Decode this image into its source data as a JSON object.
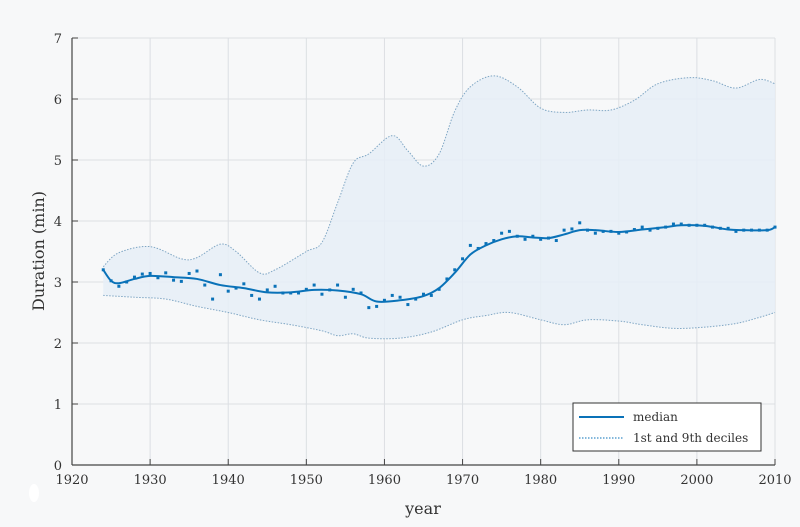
{
  "chart_data": {
    "type": "line",
    "xlabel": "year",
    "ylabel": "Duration (min)",
    "xlim": [
      1920,
      2010
    ],
    "ylim": [
      0,
      7
    ],
    "xticks": [
      1920,
      1930,
      1940,
      1950,
      1960,
      1970,
      1980,
      1990,
      2000,
      2010
    ],
    "yticks": [
      0,
      1,
      2,
      3,
      4,
      5,
      6,
      7
    ],
    "grid": true,
    "legend_position": "bottom-right",
    "colors": {
      "median": "#0a72b8",
      "points": "#0a72b8",
      "band_fill": "#e6eef7",
      "band_line": "#7fa6c4"
    },
    "points": {
      "x": [
        1924,
        1925,
        1926,
        1927,
        1928,
        1929,
        1930,
        1931,
        1932,
        1933,
        1934,
        1935,
        1936,
        1937,
        1938,
        1939,
        1940,
        1941,
        1942,
        1943,
        1944,
        1945,
        1946,
        1947,
        1948,
        1949,
        1950,
        1951,
        1952,
        1953,
        1954,
        1955,
        1956,
        1957,
        1958,
        1959,
        1960,
        1961,
        1962,
        1963,
        1964,
        1965,
        1966,
        1967,
        1968,
        1969,
        1970,
        1971,
        1972,
        1973,
        1974,
        1975,
        1976,
        1977,
        1978,
        1979,
        1980,
        1981,
        1982,
        1983,
        1984,
        1985,
        1986,
        1987,
        1988,
        1989,
        1990,
        1991,
        1992,
        1993,
        1994,
        1995,
        1996,
        1997,
        1998,
        1999,
        2000,
        2001,
        2002,
        2003,
        2004,
        2005,
        2006,
        2007,
        2008,
        2009,
        2010
      ],
      "y": [
        3.2,
        3.02,
        2.93,
        3.0,
        3.08,
        3.13,
        3.14,
        3.07,
        3.15,
        3.03,
        3.01,
        3.14,
        3.18,
        2.95,
        2.72,
        3.12,
        2.85,
        2.9,
        2.97,
        2.78,
        2.72,
        2.87,
        2.93,
        2.82,
        2.82,
        2.82,
        2.88,
        2.95,
        2.8,
        2.87,
        2.95,
        2.75,
        2.88,
        2.82,
        2.58,
        2.6,
        2.7,
        2.78,
        2.75,
        2.63,
        2.72,
        2.8,
        2.78,
        2.88,
        3.05,
        3.2,
        3.38,
        3.6,
        3.55,
        3.63,
        3.68,
        3.8,
        3.83,
        3.75,
        3.7,
        3.75,
        3.7,
        3.72,
        3.68,
        3.85,
        3.87,
        3.97,
        3.85,
        3.8,
        3.83,
        3.83,
        3.8,
        3.82,
        3.86,
        3.9,
        3.85,
        3.88,
        3.9,
        3.95,
        3.95,
        3.93,
        3.93,
        3.93,
        3.9,
        3.88,
        3.88,
        3.83,
        3.85,
        3.85,
        3.85,
        3.85,
        3.9
      ]
    },
    "series": [
      {
        "name": "median",
        "x": [
          1924,
          1925,
          1926,
          1928,
          1930,
          1933,
          1936,
          1939,
          1942,
          1945,
          1948,
          1951,
          1954,
          1957,
          1959,
          1962,
          1965,
          1967,
          1969,
          1971,
          1973,
          1975,
          1977,
          1979,
          1981,
          1983,
          1985,
          1987,
          1990,
          1993,
          1996,
          1998,
          2001,
          2004,
          2006,
          2009,
          2010
        ],
        "y": [
          3.2,
          3.02,
          2.98,
          3.05,
          3.1,
          3.08,
          3.05,
          2.95,
          2.9,
          2.83,
          2.83,
          2.87,
          2.86,
          2.8,
          2.68,
          2.7,
          2.77,
          2.9,
          3.15,
          3.45,
          3.6,
          3.7,
          3.75,
          3.73,
          3.72,
          3.78,
          3.85,
          3.85,
          3.82,
          3.86,
          3.9,
          3.93,
          3.92,
          3.86,
          3.85,
          3.85,
          3.9
        ]
      },
      {
        "name": "1st and 9th deciles",
        "upper": {
          "x": [
            1924,
            1926,
            1930,
            1934,
            1936,
            1939,
            1941,
            1944,
            1946,
            1950,
            1952,
            1954,
            1956,
            1958,
            1961,
            1963,
            1965,
            1967,
            1969,
            1971,
            1974,
            1977,
            1980,
            1983,
            1986,
            1989,
            1992,
            1995,
            1999,
            2002,
            2005,
            2008,
            2010
          ],
          "y": [
            3.25,
            3.48,
            3.58,
            3.38,
            3.4,
            3.62,
            3.5,
            3.15,
            3.2,
            3.5,
            3.65,
            4.3,
            4.95,
            5.1,
            5.4,
            5.15,
            4.9,
            5.1,
            5.8,
            6.2,
            6.38,
            6.2,
            5.85,
            5.78,
            5.82,
            5.82,
            5.98,
            6.25,
            6.35,
            6.3,
            6.18,
            6.32,
            6.25
          ]
        },
        "lower": {
          "x": [
            1924,
            1928,
            1932,
            1936,
            1940,
            1944,
            1948,
            1952,
            1954,
            1956,
            1958,
            1962,
            1966,
            1970,
            1973,
            1976,
            1980,
            1983,
            1986,
            1990,
            1993,
            1997,
            2001,
            2005,
            2008,
            2010
          ],
          "y": [
            2.78,
            2.75,
            2.72,
            2.6,
            2.5,
            2.38,
            2.3,
            2.2,
            2.12,
            2.15,
            2.08,
            2.08,
            2.18,
            2.38,
            2.45,
            2.5,
            2.38,
            2.3,
            2.38,
            2.36,
            2.3,
            2.24,
            2.26,
            2.32,
            2.42,
            2.5
          ]
        }
      }
    ]
  }
}
